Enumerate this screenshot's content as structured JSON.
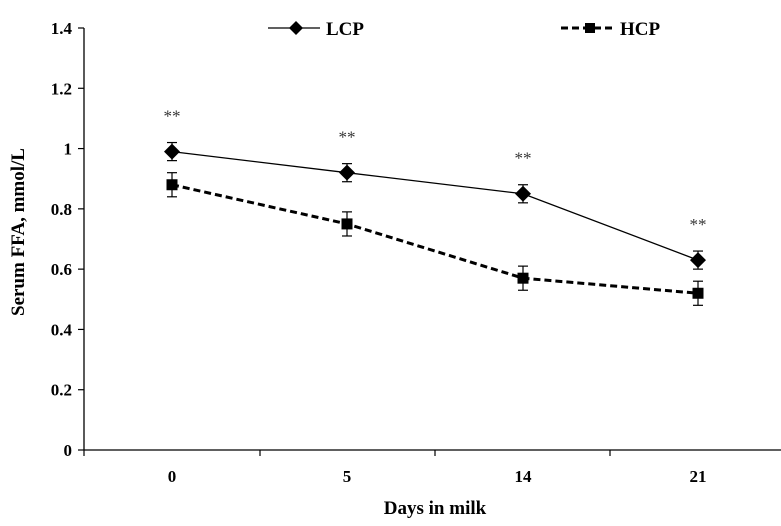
{
  "chart_data": {
    "type": "line",
    "title": "",
    "xlabel": "Days in milk",
    "ylabel": "Serum FFA, mmol/L",
    "categories": [
      "0",
      "5",
      "14",
      "21"
    ],
    "ylim": [
      0,
      1.4
    ],
    "yticks": [
      "0",
      "0.2",
      "0.4",
      "0.6",
      "0.8",
      "1",
      "1.2",
      "1.4"
    ],
    "grid": false,
    "legend_position": "top",
    "series": [
      {
        "name": "LCP",
        "values": [
          0.99,
          0.92,
          0.85,
          0.63
        ],
        "errors": [
          0.03,
          0.03,
          0.03,
          0.03
        ],
        "marker": "diamond",
        "line_style": "solid",
        "color": "#000000"
      },
      {
        "name": "HCP",
        "values": [
          0.88,
          0.75,
          0.57,
          0.52
        ],
        "errors": [
          0.04,
          0.04,
          0.04,
          0.04
        ],
        "marker": "square",
        "line_style": "dashed",
        "color": "#000000"
      }
    ],
    "annotations": [
      {
        "category": "0",
        "text": "**",
        "value": 1.11
      },
      {
        "category": "5",
        "text": "**",
        "value": 1.04
      },
      {
        "category": "14",
        "text": "**",
        "value": 0.97
      },
      {
        "category": "21",
        "text": "**",
        "value": 0.75
      }
    ]
  }
}
